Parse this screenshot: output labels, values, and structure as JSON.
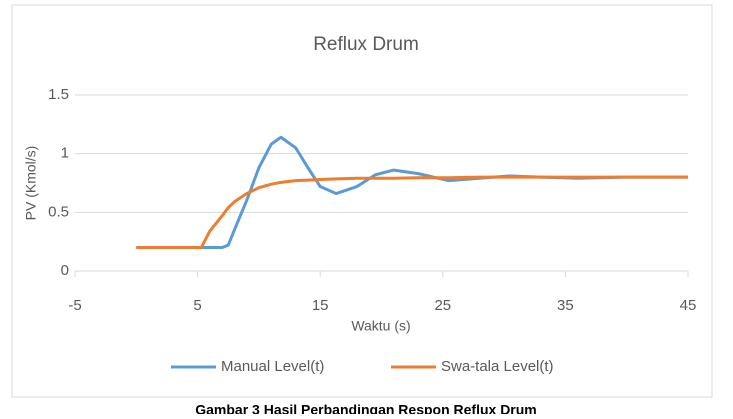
{
  "chart_data": {
    "type": "line",
    "title": "Reflux Drum",
    "x_label": "Waktu (s)",
    "y_label": "PV (Kmol/s)",
    "x": [
      0,
      5.3,
      6,
      7,
      7.5,
      8,
      9,
      10,
      11,
      11.8,
      13,
      14,
      15,
      16.3,
      18,
      19.5,
      21,
      23,
      25.5,
      28,
      30.5,
      33,
      36,
      40,
      45
    ],
    "series": [
      {
        "name": "Manual Level(t)",
        "color": "#5b9bd5",
        "values": [
          0.2,
          0.2,
          0.2,
          0.2,
          0.22,
          0.35,
          0.6,
          0.88,
          1.08,
          1.14,
          1.05,
          0.88,
          0.72,
          0.66,
          0.72,
          0.82,
          0.86,
          0.83,
          0.77,
          0.79,
          0.81,
          0.8,
          0.79,
          0.8,
          0.8
        ]
      },
      {
        "name": "Swa-tala Level(t)",
        "color": "#ed7d31",
        "values": [
          0.2,
          0.2,
          0.34,
          0.47,
          0.54,
          0.59,
          0.66,
          0.71,
          0.74,
          0.755,
          0.77,
          0.775,
          0.78,
          0.785,
          0.79,
          0.79,
          0.79,
          0.795,
          0.795,
          0.8,
          0.8,
          0.8,
          0.8,
          0.8,
          0.8
        ]
      }
    ],
    "xlim": [
      -5,
      45
    ],
    "xticks": [
      -5,
      5,
      15,
      25,
      35,
      45
    ],
    "ylim": [
      0,
      1.5
    ],
    "yticks": [
      0,
      0.5,
      1,
      1.5
    ],
    "grid": true,
    "legend": "bottom",
    "caption": "Gambar 3 Hasil Perbandingan Respon Reflux Drum"
  }
}
